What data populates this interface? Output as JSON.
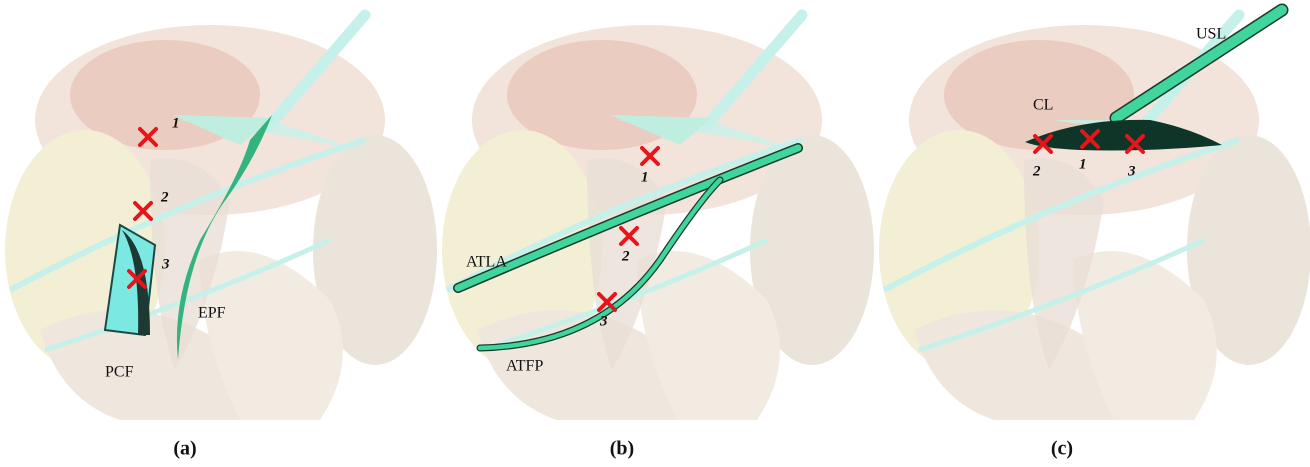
{
  "panels": [
    {
      "caption": "(a)",
      "markers": [
        "1",
        "2",
        "3"
      ],
      "labels": [
        "PCF",
        "EPF"
      ]
    },
    {
      "caption": "(b)",
      "markers": [
        "1",
        "2",
        "3"
      ],
      "labels": [
        "ATLA",
        "ATFP"
      ]
    },
    {
      "caption": "(c)",
      "markers": [
        "2",
        "1",
        "3"
      ],
      "labels": [
        "USL",
        "CL"
      ]
    }
  ]
}
